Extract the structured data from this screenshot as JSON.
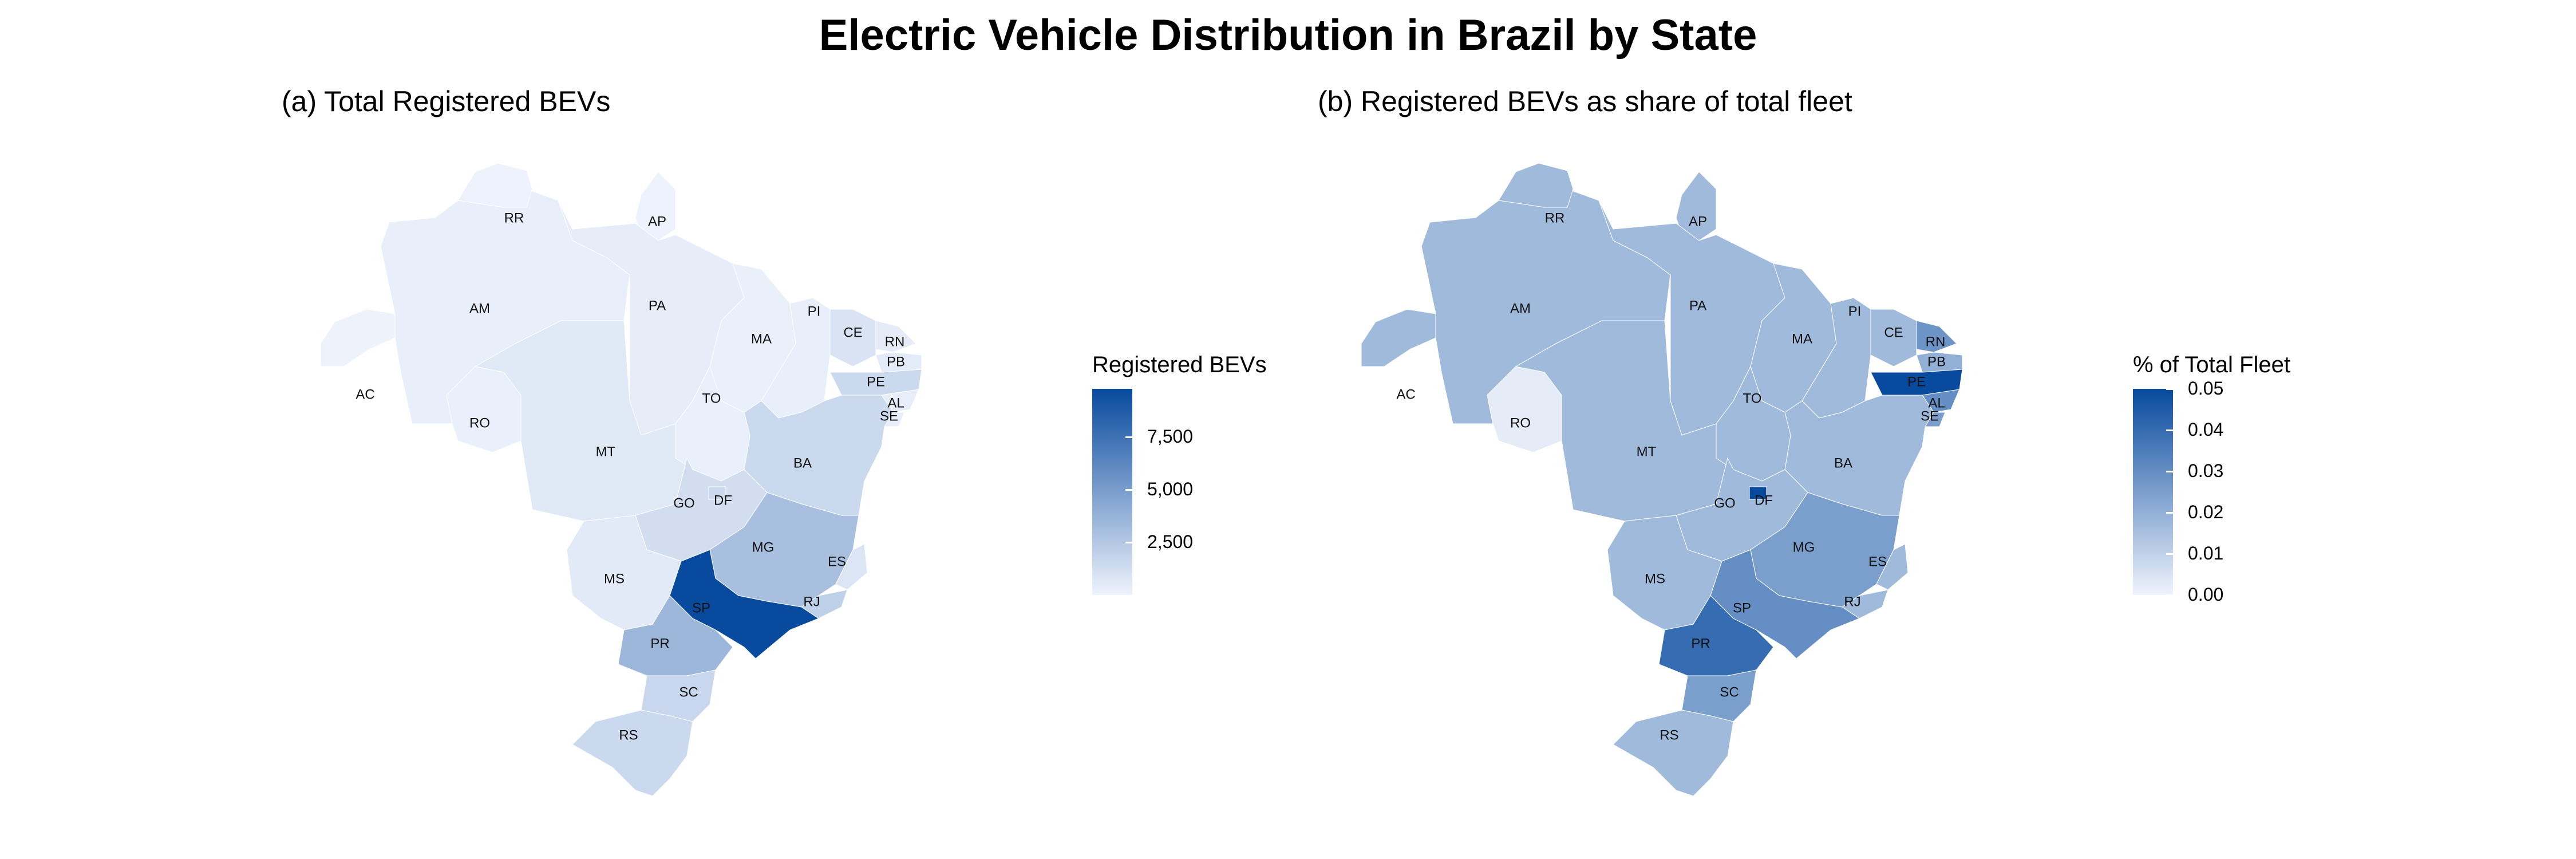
{
  "title": "Electric Vehicle Distribution in Brazil by State",
  "panels": [
    {
      "title": "(a) Total Registered BEVs",
      "legend": {
        "title": "Registered BEVs",
        "ticks": [
          "7,500",
          "5,000",
          "2,500"
        ],
        "tick_values": [
          7500,
          5000,
          2500
        ],
        "min": 0,
        "max": 9800
      },
      "colors": {
        "low": "#eef3fc",
        "high": "#084a9e"
      }
    },
    {
      "title": "(b) Registered BEVs as share of total fleet",
      "legend": {
        "title": "% of Total Fleet",
        "ticks": [
          "0.05",
          "0.04",
          "0.03",
          "0.02",
          "0.01",
          "0.00"
        ],
        "tick_values": [
          0.05,
          0.04,
          0.03,
          0.02,
          0.01,
          0.0
        ],
        "min": 0,
        "max": 0.05
      },
      "colors": {
        "low": "#eef3fc",
        "high": "#084a9e"
      }
    }
  ],
  "chart_data": {
    "type": "choropleth",
    "states": [
      "AC",
      "AM",
      "RR",
      "AP",
      "PA",
      "RO",
      "MT",
      "MA",
      "PI",
      "CE",
      "RN",
      "PB",
      "PE",
      "AL",
      "SE",
      "BA",
      "TO",
      "GO",
      "DF",
      "MS",
      "MG",
      "ES",
      "RJ",
      "SP",
      "PR",
      "SC",
      "RS"
    ],
    "bev_total": {
      "AC": 60,
      "AM": 250,
      "RR": 40,
      "AP": 50,
      "PA": 350,
      "RO": 150,
      "MT": 600,
      "MA": 200,
      "PI": 250,
      "CE": 900,
      "RN": 400,
      "PB": 450,
      "PE": 1500,
      "AL": 300,
      "SE": 250,
      "BA": 1500,
      "TO": 150,
      "GO": 1200,
      "DF": 1500,
      "MS": 500,
      "MG": 3000,
      "ES": 800,
      "RJ": 2000,
      "SP": 9800,
      "PR": 3500,
      "SC": 1600,
      "RS": 1500
    },
    "share_pct": {
      "AC": 0.017,
      "AM": 0.017,
      "RR": 0.017,
      "AP": 0.017,
      "PA": 0.017,
      "RO": 0.002,
      "MT": 0.017,
      "MA": 0.017,
      "PI": 0.017,
      "CE": 0.017,
      "RN": 0.028,
      "PB": 0.02,
      "PE": 0.05,
      "AL": 0.03,
      "SE": 0.025,
      "BA": 0.017,
      "TO": 0.017,
      "GO": 0.017,
      "DF": 0.05,
      "MS": 0.017,
      "MG": 0.025,
      "ES": 0.017,
      "RJ": 0.017,
      "SP": 0.03,
      "PR": 0.04,
      "SC": 0.025,
      "RS": 0.017
    }
  }
}
